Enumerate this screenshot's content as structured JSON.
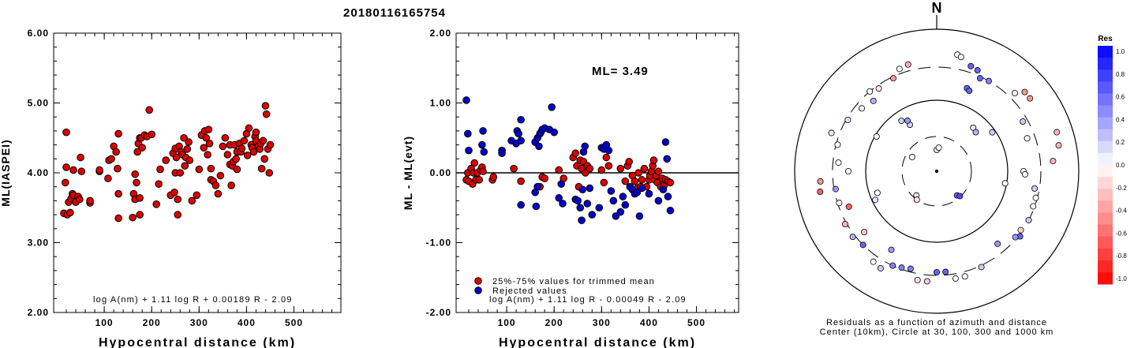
{
  "title": "20180116165754",
  "chart_data": [
    {
      "type": "scatter",
      "id": "left",
      "xlabel": "Hypocentral distance (km)",
      "ylabel": "ML(IASPEI)",
      "xlim": [
        0,
        600
      ],
      "ylim": [
        2.0,
        6.0
      ],
      "xticks": [
        "100",
        "200",
        "300",
        "400",
        "500"
      ],
      "yticks": [
        "2.00",
        "3.00",
        "4.00",
        "5.00",
        "6.00"
      ],
      "formula": "log A(nm) + 1.11 log R + 0.00189 R - 2.09",
      "marker_color": "#dd0000",
      "points": [
        [
          15,
          3.42
        ],
        [
          18,
          3.86
        ],
        [
          20,
          4.08
        ],
        [
          20,
          4.58
        ],
        [
          22,
          3.4
        ],
        [
          25,
          3.58
        ],
        [
          28,
          3.43
        ],
        [
          30,
          3.63
        ],
        [
          33,
          3.7
        ],
        [
          35,
          3.68
        ],
        [
          35,
          4.04
        ],
        [
          40,
          3.58
        ],
        [
          45,
          3.66
        ],
        [
          48,
          3.62
        ],
        [
          50,
          4.22
        ],
        [
          52,
          4.02
        ],
        [
          70,
          3.57
        ],
        [
          70,
          3.6
        ],
        [
          90,
          4.02
        ],
        [
          90,
          4.04
        ],
        [
          108,
          3.92
        ],
        [
          110,
          4.18
        ],
        [
          115,
          4.2
        ],
        [
          120,
          4.38
        ],
        [
          125,
          4.3
        ],
        [
          128,
          4.06
        ],
        [
          130,
          3.7
        ],
        [
          130,
          4.56
        ],
        [
          130,
          3.35
        ],
        [
          160,
          3.36
        ],
        [
          162,
          3.7
        ],
        [
          165,
          3.62
        ],
        [
          165,
          3.98
        ],
        [
          168,
          3.86
        ],
        [
          170,
          4.3
        ],
        [
          172,
          4.42
        ],
        [
          175,
          3.4
        ],
        [
          175,
          3.64
        ],
        [
          175,
          4.5
        ],
        [
          178,
          4.5
        ],
        [
          180,
          4.36
        ],
        [
          185,
          4.54
        ],
        [
          190,
          4.52
        ],
        [
          195,
          4.9
        ],
        [
          200,
          4.55
        ],
        [
          210,
          3.55
        ],
        [
          215,
          3.84
        ],
        [
          218,
          4.05
        ],
        [
          230,
          4.18
        ],
        [
          240,
          3.68
        ],
        [
          245,
          4.28
        ],
        [
          248,
          3.72
        ],
        [
          250,
          4.0
        ],
        [
          250,
          4.35
        ],
        [
          252,
          4.22
        ],
        [
          255,
          3.4
        ],
        [
          255,
          3.62
        ],
        [
          258,
          4.38
        ],
        [
          260,
          4.0
        ],
        [
          262,
          4.3
        ],
        [
          265,
          4.26
        ],
        [
          268,
          4.5
        ],
        [
          270,
          4.1
        ],
        [
          272,
          4.22
        ],
        [
          275,
          4.34
        ],
        [
          278,
          4.44
        ],
        [
          280,
          4.18
        ],
        [
          285,
          3.6
        ],
        [
          295,
          3.68
        ],
        [
          300,
          4.05
        ],
        [
          305,
          4.54
        ],
        [
          310,
          4.36
        ],
        [
          312,
          4.6
        ],
        [
          315,
          4.5
        ],
        [
          318,
          4.26
        ],
        [
          320,
          4.62
        ],
        [
          322,
          4.42
        ],
        [
          325,
          4.06
        ],
        [
          325,
          3.9
        ],
        [
          330,
          3.88
        ],
        [
          335,
          3.82
        ],
        [
          340,
          3.7
        ],
        [
          345,
          3.96
        ],
        [
          350,
          4.38
        ],
        [
          355,
          4.5
        ],
        [
          360,
          4.26
        ],
        [
          365,
          4.4
        ],
        [
          365,
          4.12
        ],
        [
          368,
          3.82
        ],
        [
          370,
          4.1
        ],
        [
          372,
          4.16
        ],
        [
          375,
          4.4
        ],
        [
          378,
          4.2
        ],
        [
          380,
          4.05
        ],
        [
          380,
          4.3
        ],
        [
          385,
          4.42
        ],
        [
          388,
          4.3
        ],
        [
          390,
          4.35
        ],
        [
          395,
          4.46
        ],
        [
          400,
          4.56
        ],
        [
          402,
          4.25
        ],
        [
          405,
          4.64
        ],
        [
          410,
          4.4
        ],
        [
          412,
          4.36
        ],
        [
          415,
          4.3
        ],
        [
          418,
          4.52
        ],
        [
          420,
          4.58
        ],
        [
          420,
          4.46
        ],
        [
          425,
          4.38
        ],
        [
          428,
          4.34
        ],
        [
          430,
          4.42
        ],
        [
          432,
          4.06
        ],
        [
          435,
          4.46
        ],
        [
          438,
          4.2
        ],
        [
          440,
          4.96
        ],
        [
          442,
          4.84
        ],
        [
          445,
          4.34
        ],
        [
          448,
          4.0
        ],
        [
          450,
          4.4
        ]
      ]
    },
    {
      "type": "scatter",
      "id": "mid",
      "xlabel": "Hypocentral distance (km)",
      "ylabel": "ML - ML(evt)",
      "xlim": [
        0,
        600
      ],
      "ylim": [
        -2.0,
        2.0
      ],
      "xticks": [
        "100",
        "200",
        "300",
        "400",
        "500"
      ],
      "yticks": [
        "-2.00",
        "-1.00",
        "0.00",
        "1.00",
        "2.00"
      ],
      "ml_label": "ML= 3.49",
      "formula": "log A(nm) + 1.11 log R - 0.00049 R - 2.09",
      "legend": [
        "25%-75% values for trimmed mean",
        "Rejected values"
      ],
      "series": [
        {
          "color": "#dd0000",
          "points": [
            [
              15,
              -0.1
            ],
            [
              18,
              0.0
            ],
            [
              20,
              -0.12
            ],
            [
              25,
              0.06
            ],
            [
              28,
              -0.16
            ],
            [
              30,
              0.0
            ],
            [
              32,
              0.14
            ],
            [
              35,
              -0.1
            ],
            [
              38,
              0.0
            ],
            [
              42,
              -0.1
            ],
            [
              45,
              0.04
            ],
            [
              48,
              0.08
            ],
            [
              50,
              0.02
            ],
            [
              70,
              -0.1
            ],
            [
              72,
              -0.06
            ],
            [
              115,
              0.06
            ],
            [
              130,
              -0.12
            ],
            [
              170,
              -0.2
            ],
            [
              175,
              -0.06
            ],
            [
              180,
              -0.08
            ],
            [
              210,
              0.04
            ],
            [
              220,
              -0.08
            ],
            [
              240,
              0.22
            ],
            [
              245,
              0.28
            ],
            [
              248,
              0.1
            ],
            [
              252,
              -0.2
            ],
            [
              255,
              0.18
            ],
            [
              258,
              0.06
            ],
            [
              262,
              0.16
            ],
            [
              266,
              0.0
            ],
            [
              270,
              0.1
            ],
            [
              275,
              0.06
            ],
            [
              300,
              0.04
            ],
            [
              305,
              -0.14
            ],
            [
              310,
              0.22
            ],
            [
              315,
              0.1
            ],
            [
              340,
              0.06
            ],
            [
              350,
              -0.12
            ],
            [
              355,
              0.1
            ],
            [
              358,
              0.16
            ],
            [
              365,
              -0.04
            ],
            [
              370,
              -0.12
            ],
            [
              375,
              -0.22
            ],
            [
              378,
              0.0
            ],
            [
              382,
              -0.2
            ],
            [
              385,
              -0.1
            ],
            [
              390,
              0.06
            ],
            [
              395,
              -0.2
            ],
            [
              400,
              -0.1
            ],
            [
              402,
              -0.04
            ],
            [
              405,
              0.02
            ],
            [
              408,
              0.1
            ],
            [
              410,
              0.18
            ],
            [
              412,
              -0.1
            ],
            [
              415,
              -0.04
            ],
            [
              418,
              -0.14
            ],
            [
              420,
              0.02
            ],
            [
              425,
              -0.2
            ],
            [
              428,
              -0.08
            ],
            [
              432,
              -0.18
            ],
            [
              435,
              -0.1
            ],
            [
              440,
              -0.12
            ],
            [
              445,
              -0.14
            ]
          ]
        },
        {
          "color": "#0000cc",
          "points": [
            [
              15,
              1.04
            ],
            [
              18,
              0.56
            ],
            [
              20,
              0.32
            ],
            [
              48,
              0.4
            ],
            [
              50,
              0.6
            ],
            [
              52,
              0.3
            ],
            [
              90,
              0.32
            ],
            [
              90,
              0.28
            ],
            [
              110,
              0.46
            ],
            [
              120,
              0.42
            ],
            [
              122,
              0.6
            ],
            [
              125,
              0.56
            ],
            [
              130,
              0.46
            ],
            [
              130,
              0.76
            ],
            [
              130,
              -0.46
            ],
            [
              160,
              0.44
            ],
            [
              165,
              0.5
            ],
            [
              168,
              0.38
            ],
            [
              170,
              0.56
            ],
            [
              172,
              0.58
            ],
            [
              175,
              0.62
            ],
            [
              180,
              0.64
            ],
            [
              190,
              0.62
            ],
            [
              195,
              0.94
            ],
            [
              200,
              0.58
            ],
            [
              160,
              -0.28
            ],
            [
              162,
              -0.48
            ],
            [
              165,
              -0.2
            ],
            [
              210,
              -0.36
            ],
            [
              215,
              -0.16
            ],
            [
              218,
              -0.44
            ],
            [
              245,
              -0.38
            ],
            [
              250,
              -0.4
            ],
            [
              255,
              -0.5
            ],
            [
              258,
              -0.68
            ],
            [
              260,
              -0.24
            ],
            [
              262,
              0.3
            ],
            [
              265,
              0.38
            ],
            [
              270,
              -0.44
            ],
            [
              275,
              -0.22
            ],
            [
              280,
              -0.6
            ],
            [
              295,
              -0.5
            ],
            [
              300,
              0.36
            ],
            [
              305,
              0.34
            ],
            [
              310,
              0.4
            ],
            [
              315,
              0.32
            ],
            [
              320,
              -0.26
            ],
            [
              325,
              -0.4
            ],
            [
              330,
              -0.62
            ],
            [
              340,
              -0.56
            ],
            [
              345,
              -0.34
            ],
            [
              350,
              -0.46
            ],
            [
              360,
              -0.2
            ],
            [
              365,
              -0.24
            ],
            [
              370,
              -0.3
            ],
            [
              375,
              -0.28
            ],
            [
              380,
              -0.62
            ],
            [
              385,
              -0.22
            ],
            [
              400,
              -0.3
            ],
            [
              420,
              -0.4
            ],
            [
              430,
              -0.24
            ],
            [
              435,
              0.44
            ],
            [
              438,
              0.2
            ],
            [
              440,
              -0.34
            ],
            [
              445,
              -0.54
            ]
          ]
        }
      ]
    }
  ],
  "polar": {
    "north_label": "N",
    "caption_line1": "Residuals as a function of azimuth and distance",
    "caption_line2": "Center (10km), Circle at 30, 100, 300 and 1000 km"
  },
  "colorbar": {
    "title": "Res",
    "tick_labels": [
      "1.0",
      "0.8",
      "0.6",
      "0.4",
      "0.2",
      "0.0",
      "-0.2",
      "-0.4",
      "-0.6",
      "-0.8",
      "-1.0"
    ]
  }
}
